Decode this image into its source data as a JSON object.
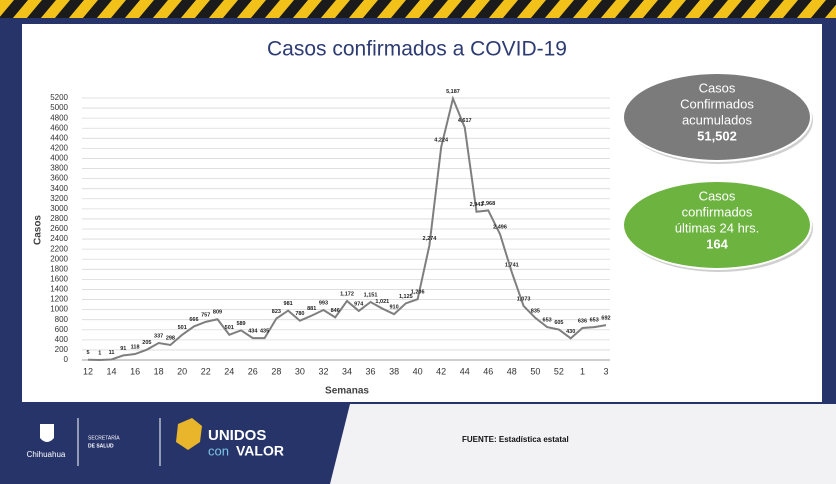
{
  "chart_data": {
    "type": "line",
    "title": "Casos confirmados a COVID-19",
    "x_label": "Semanas",
    "y_label": "Casos",
    "categories": [
      "12",
      null,
      "14",
      null,
      "16",
      null,
      "18",
      null,
      "20",
      null,
      "22",
      null,
      "24",
      null,
      "26",
      null,
      "28",
      null,
      "30",
      null,
      "32",
      null,
      "34",
      null,
      "36",
      null,
      "38",
      null,
      "40",
      null,
      "42",
      null,
      "44",
      null,
      "46",
      null,
      "48",
      null,
      "50",
      null,
      "52",
      null,
      "1",
      null,
      "3"
    ],
    "series": [
      {
        "color": "#7f7f7f",
        "values": [
          5,
          1,
          11,
          91,
          118,
          205,
          337,
          298,
          501,
          666,
          757,
          809,
          501,
          589,
          434,
          435,
          823,
          981,
          780,
          881,
          993,
          846,
          1172,
          974,
          1151,
          1021,
          910,
          1125,
          1206,
          2274,
          4224,
          5187,
          4617,
          2943,
          2968,
          2496,
          1741,
          1073,
          835,
          653,
          605,
          430,
          636,
          653,
          692
        ],
        "value_labels": [
          "5",
          "1",
          "11",
          "91",
          "118",
          "205",
          "337",
          "298",
          "501",
          "666",
          "757",
          "809",
          "501",
          "589",
          "434",
          "435",
          "823",
          "981",
          "780",
          "881",
          "993",
          "846",
          "1,172",
          "974",
          "1,151",
          "1,021",
          "910",
          "1,125",
          "1,206",
          "2,274",
          "4,224",
          "5,187",
          "4,617",
          "2,943",
          "2,968",
          "2,496",
          "1,741",
          "1,073",
          "835",
          "653",
          "605",
          "430",
          "636",
          "653",
          "692"
        ]
      }
    ],
    "ylim": [
      0,
      5200
    ],
    "yticks": [
      0,
      200,
      400,
      600,
      800,
      1000,
      1200,
      1400,
      1600,
      1800,
      2000,
      2200,
      2400,
      2600,
      2800,
      3000,
      3200,
      3400,
      3600,
      3800,
      4000,
      4200,
      4400,
      4600,
      4800,
      5000,
      5200
    ],
    "grid": true
  },
  "callouts": [
    {
      "lines": [
        "Casos",
        "Confirmados",
        "acumulados"
      ],
      "total": "51,502",
      "color": "#7b7b7b"
    },
    {
      "lines": [
        "Casos",
        "confirmados",
        "últimas 24 hrs."
      ],
      "total": "164",
      "color": "#6cb33f"
    }
  ],
  "footer": {
    "source": "FUENTE: Estadística estatal",
    "state": "Chihuahua",
    "ministry": [
      "SECRETARÍA",
      "DE SALUD"
    ],
    "slogan": [
      "UNIDOS",
      "con",
      "VALOR"
    ]
  }
}
